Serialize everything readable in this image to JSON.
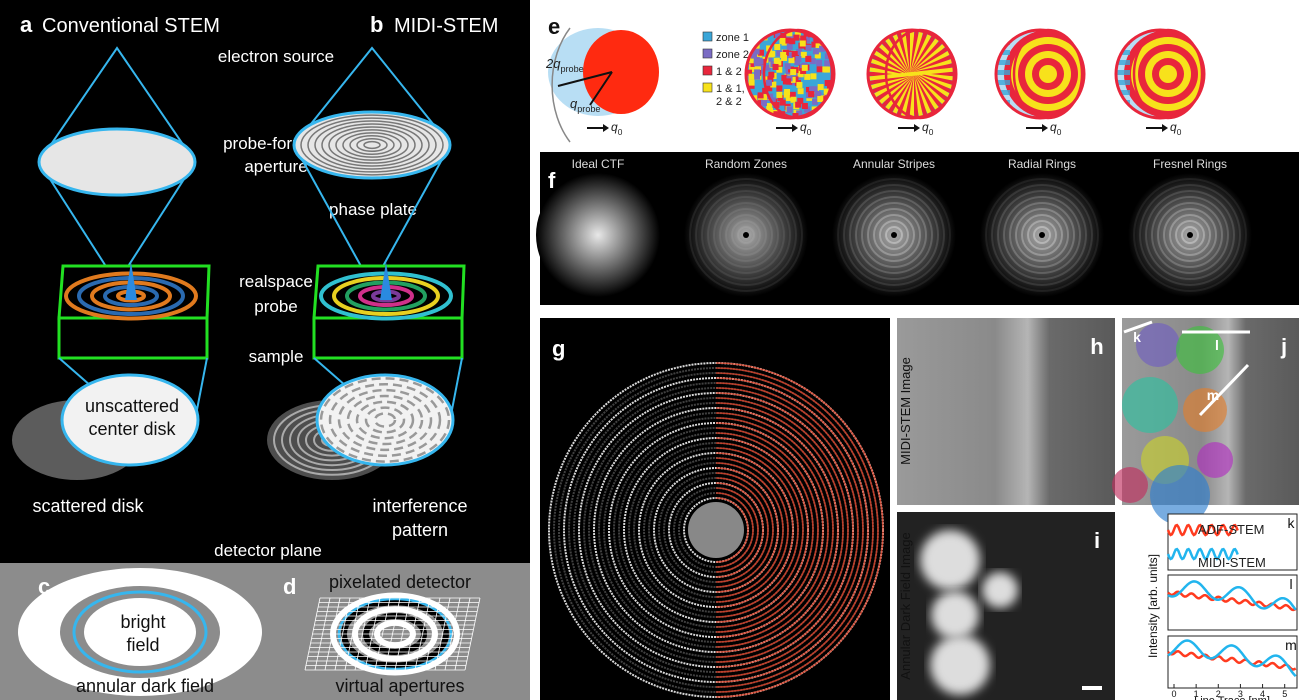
{
  "panel_a": {
    "letter": "a",
    "title": "Conventional STEM"
  },
  "panel_b": {
    "letter": "b",
    "title": "MIDI-STEM"
  },
  "labels": {
    "electron_source": "electron source",
    "probe_forming": [
      "probe-forming",
      "aperture"
    ],
    "phase_plate": "phase plate",
    "realspace_probe": [
      "realspace",
      "probe"
    ],
    "sample": "sample",
    "unscattered": [
      "unscattered",
      "center disk"
    ],
    "scattered": "scattered disk",
    "interference": [
      "interference",
      "pattern"
    ],
    "detector_plane": "detector plane"
  },
  "panel_c": {
    "letter": "c",
    "bright_field": [
      "bright",
      "field"
    ],
    "annular": "annular dark field"
  },
  "panel_d": {
    "letter": "d",
    "pixelated": "pixelated detector",
    "virtual": "virtual apertures"
  },
  "panel_e": {
    "letter": "e",
    "legend": [
      {
        "label": "zone 1",
        "color": "#3aa6d8"
      },
      {
        "label": "zone 2",
        "color": "#7b6cc4"
      },
      {
        "label": "1 & 2",
        "color": "#e8263c"
      },
      {
        "label": "1 & 1,",
        "label2": "2 & 2",
        "color": "#f7e21b"
      }
    ],
    "two_q": {
      "base": "2q",
      "sub": "probe"
    },
    "q": {
      "base": "q",
      "sub": "probe"
    },
    "q0": {
      "base": "q",
      "sub": "0"
    }
  },
  "panel_f": {
    "letter": "f",
    "titles": [
      "Ideal CTF",
      "Random Zones",
      "Annular Stripes",
      "Radial Rings",
      "Fresnel Rings"
    ]
  },
  "panel_g": {
    "letter": "g"
  },
  "panel_h": {
    "letter": "h",
    "ylabel": "MIDI-STEM Image"
  },
  "panel_i": {
    "letter": "i",
    "ylabel": "Annular Dark Field Image"
  },
  "panel_j": {
    "letter": "j",
    "traces": [
      "k",
      "l",
      "m"
    ]
  },
  "panel_k": {
    "letters": [
      "k",
      "l",
      "m"
    ],
    "series": [
      {
        "name": "ADF-STEM",
        "color": "#ff3b1f"
      },
      {
        "name": "MIDI-STEM",
        "color": "#22b5ee"
      }
    ],
    "ylabel": "Intensity [arb. units]",
    "xlabel": "Line Trace [nm]",
    "xticks": [
      0,
      1,
      2,
      3,
      4,
      5
    ]
  }
}
